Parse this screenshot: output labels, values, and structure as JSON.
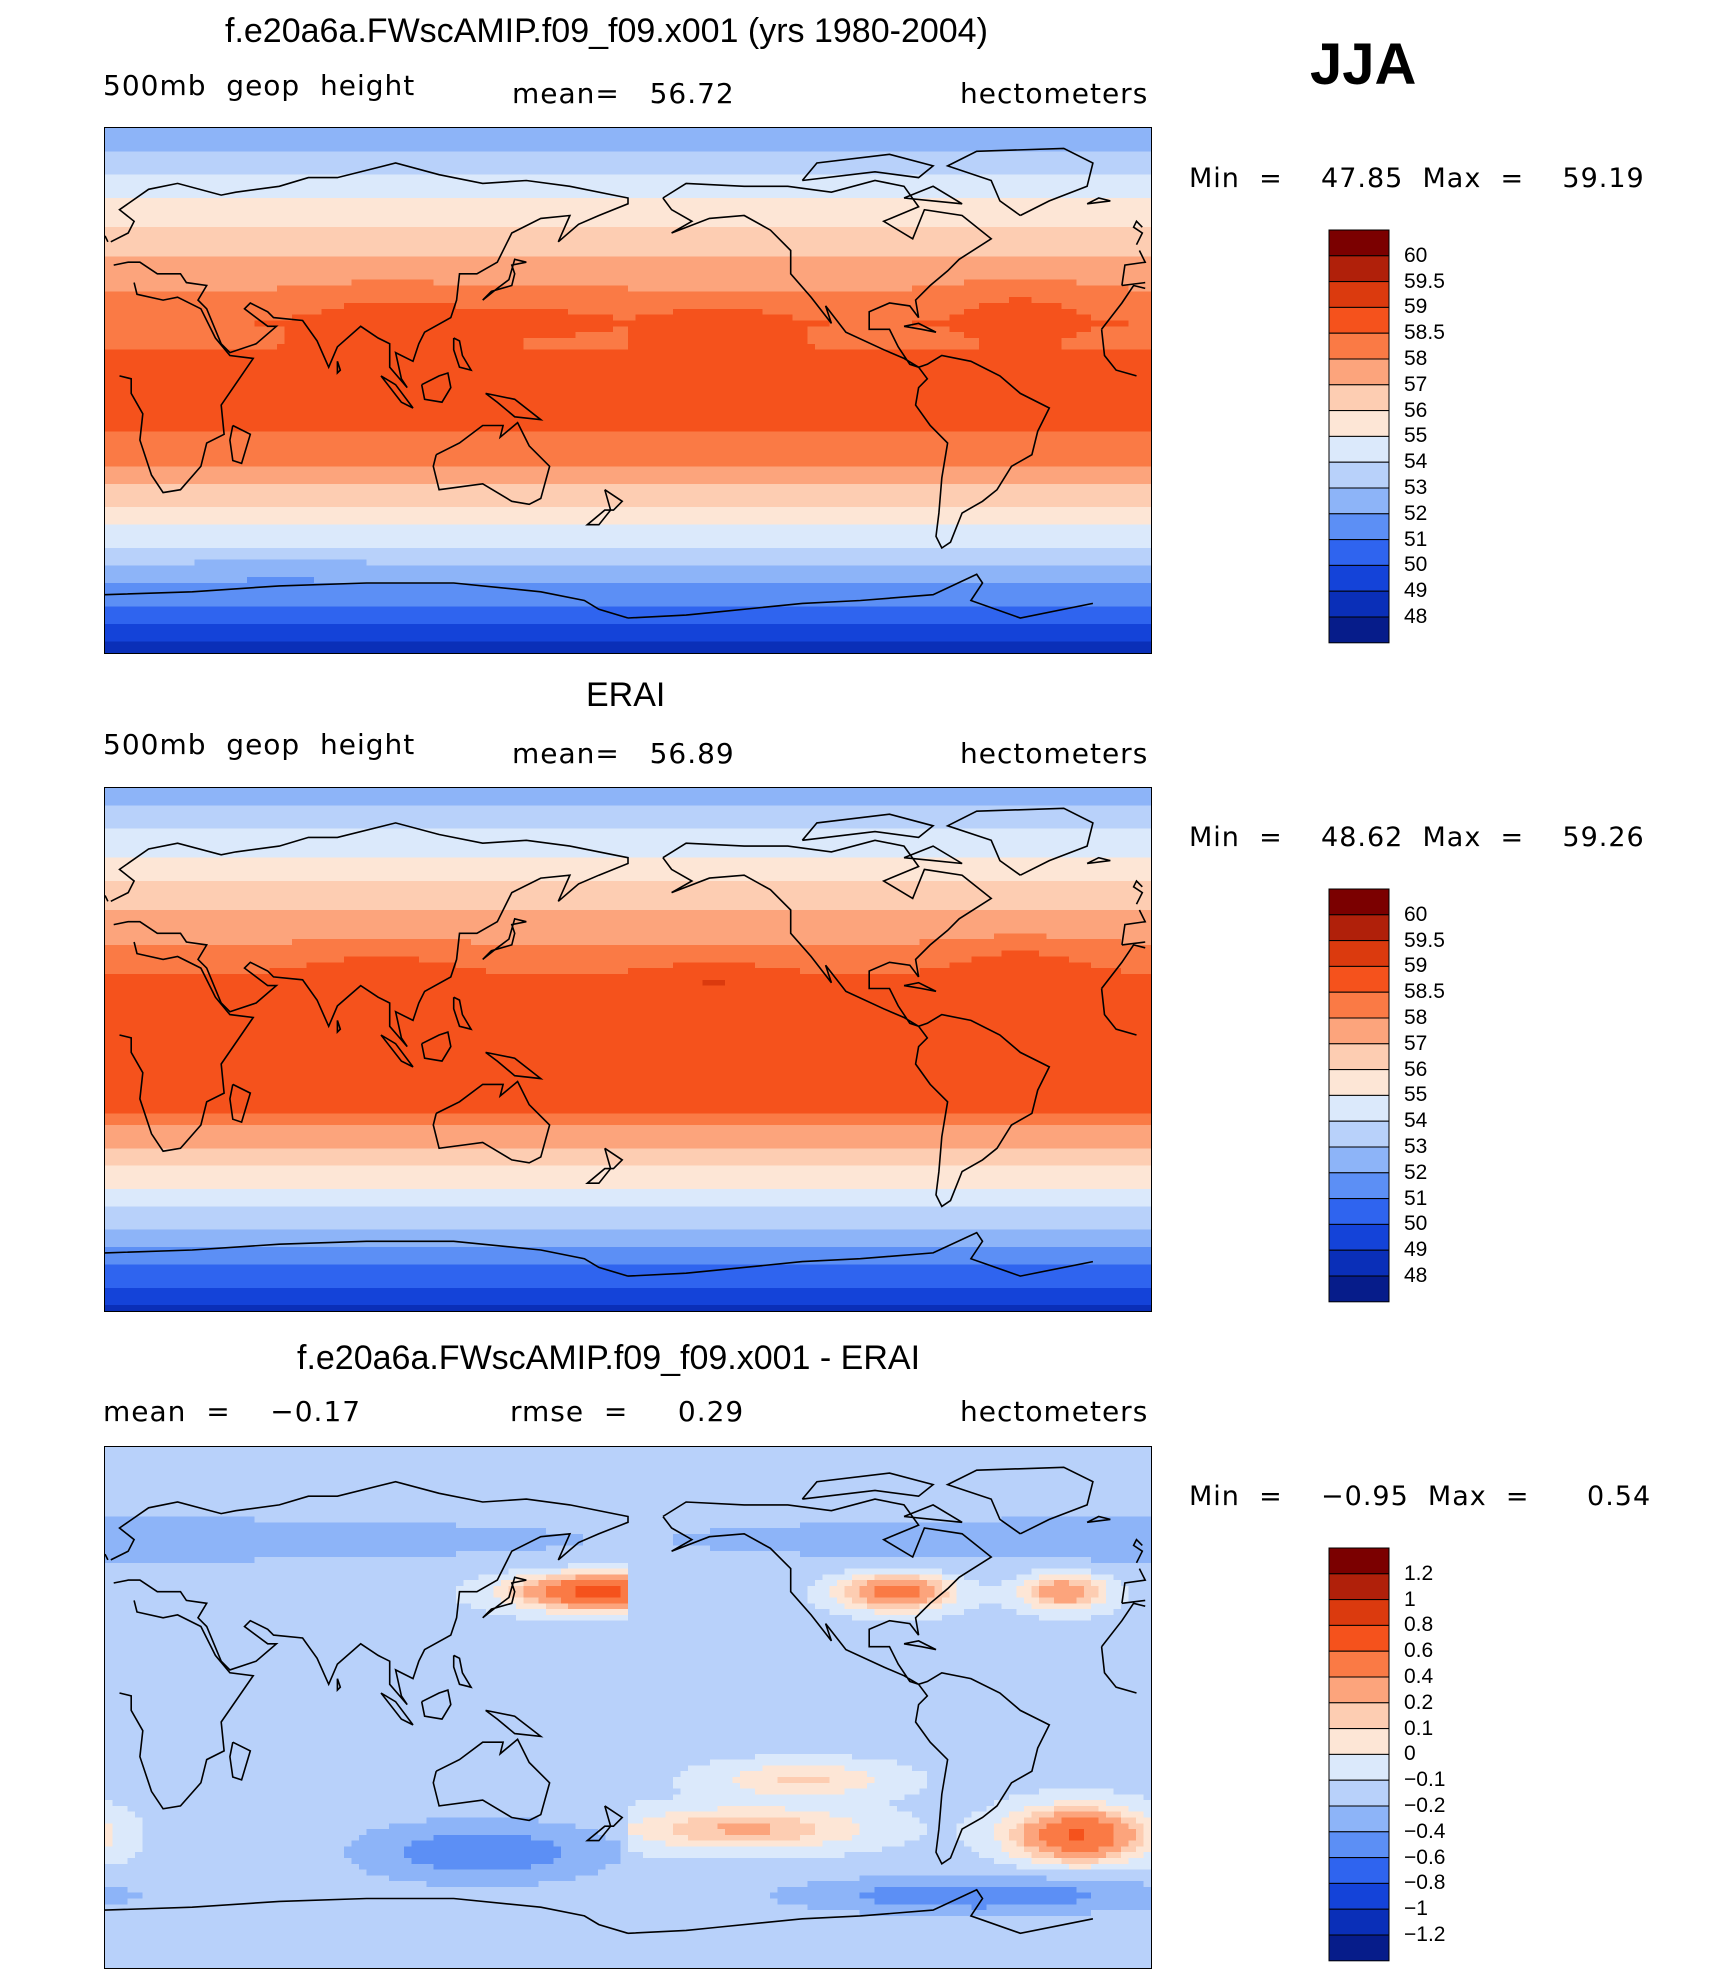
{
  "season": "JJA",
  "chart_data": [
    {
      "type": "heatmap",
      "id": "model",
      "title": "f.e20a6a.FWscAMIP.f09_f09.x001 (yrs 1980-2004)",
      "left_label": "500mb  geop  height",
      "center_label": "mean=   56.72",
      "units": "hectometers",
      "min_label": "Min  =    47.85  Max  =    59.19",
      "min": 47.85,
      "max": 59.19,
      "mean": 56.72,
      "colorbar_levels": [
        "60",
        "59.5",
        "59",
        "58.5",
        "58",
        "57",
        "56",
        "55",
        "54",
        "53",
        "52",
        "51",
        "50",
        "49",
        "48"
      ],
      "colorbar_colors": [
        "#7b0000",
        "#b0200a",
        "#db3a0e",
        "#f5521c",
        "#fa7a45",
        "#fca47c",
        "#fdcdb2",
        "#fde6d6",
        "#dbe9fb",
        "#b8d1fa",
        "#8db4f8",
        "#5c8ff5",
        "#2f64ef",
        "#1443d9",
        "#0a2fb8",
        "#061c8a"
      ]
    },
    {
      "type": "heatmap",
      "id": "obs",
      "title": "ERAI",
      "left_label": "500mb  geop  height",
      "center_label": "mean=   56.89",
      "units": "hectometers",
      "min_label": "Min  =    48.62  Max  =    59.26",
      "min": 48.62,
      "max": 59.26,
      "mean": 56.89,
      "colorbar_levels": [
        "60",
        "59.5",
        "59",
        "58.5",
        "58",
        "57",
        "56",
        "55",
        "54",
        "53",
        "52",
        "51",
        "50",
        "49",
        "48"
      ],
      "colorbar_colors": [
        "#7b0000",
        "#b0200a",
        "#db3a0e",
        "#f5521c",
        "#fa7a45",
        "#fca47c",
        "#fdcdb2",
        "#fde6d6",
        "#dbe9fb",
        "#b8d1fa",
        "#8db4f8",
        "#5c8ff5",
        "#2f64ef",
        "#1443d9",
        "#0a2fb8",
        "#061c8a"
      ]
    },
    {
      "type": "heatmap",
      "id": "diff",
      "title": "f.e20a6a.FWscAMIP.f09_f09.x001 - ERAI",
      "left_label": "mean  =    −0.17",
      "center_label": "rmse  =     0.29",
      "units": "hectometers",
      "min_label": "Min  =    −0.95  Max  =      0.54",
      "min": -0.95,
      "max": 0.54,
      "mean": -0.17,
      "rmse": 0.29,
      "colorbar_levels": [
        "1.2",
        "1",
        "0.8",
        "0.6",
        "0.4",
        "0.2",
        "0.1",
        "0",
        "−0.1",
        "−0.2",
        "−0.4",
        "−0.6",
        "−0.8",
        "−1",
        "−1.2"
      ],
      "colorbar_colors": [
        "#7b0000",
        "#b0200a",
        "#db3a0e",
        "#f5521c",
        "#fa7a45",
        "#fca47c",
        "#fdcdb2",
        "#fde6d6",
        "#dbe9fb",
        "#b8d1fa",
        "#8db4f8",
        "#5c8ff5",
        "#2f64ef",
        "#1443d9",
        "#0a2fb8",
        "#061c8a"
      ]
    }
  ]
}
